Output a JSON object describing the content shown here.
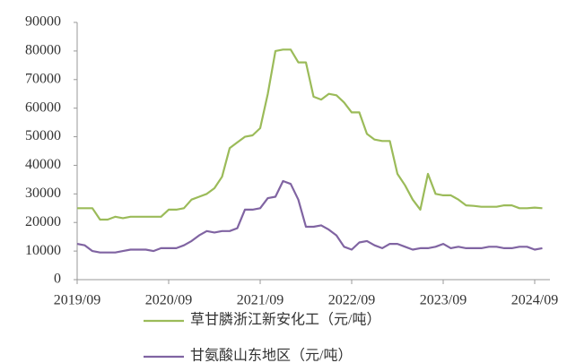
{
  "chart_data": {
    "type": "line",
    "x": [
      "2019/09",
      "2019/10",
      "2019/11",
      "2019/12",
      "2020/01",
      "2020/02",
      "2020/03",
      "2020/04",
      "2020/05",
      "2020/06",
      "2020/07",
      "2020/08",
      "2020/09",
      "2020/10",
      "2020/11",
      "2020/12",
      "2021/01",
      "2021/02",
      "2021/03",
      "2021/04",
      "2021/05",
      "2021/06",
      "2021/07",
      "2021/08",
      "2021/09",
      "2021/10",
      "2021/11",
      "2021/12",
      "2022/01",
      "2022/02",
      "2022/03",
      "2022/04",
      "2022/05",
      "2022/06",
      "2022/07",
      "2022/08",
      "2022/09",
      "2022/10",
      "2022/11",
      "2022/12",
      "2023/01",
      "2023/02",
      "2023/03",
      "2023/04",
      "2023/05",
      "2023/06",
      "2023/07",
      "2023/08",
      "2023/09",
      "2023/10",
      "2023/11",
      "2023/12",
      "2024/01",
      "2024/02",
      "2024/03",
      "2024/04",
      "2024/05",
      "2024/06",
      "2024/07",
      "2024/08",
      "2024/09",
      "2024/10"
    ],
    "series": [
      {
        "name": "草甘膦浙江新安化工（元/吨）",
        "color": "#9bbb59",
        "values": [
          25000,
          25000,
          25000,
          21000,
          21000,
          22000,
          21500,
          22000,
          22000,
          22000,
          22000,
          22000,
          24500,
          24500,
          25000,
          28000,
          29000,
          30000,
          32000,
          36000,
          46000,
          48000,
          50000,
          50500,
          53000,
          65000,
          80000,
          80500,
          80500,
          76000,
          76000,
          64000,
          63000,
          65000,
          64500,
          62000,
          58500,
          58500,
          51000,
          49000,
          48500,
          48500,
          37000,
          33000,
          28000,
          24500,
          37000,
          30000,
          29500,
          29500,
          28000,
          26000,
          25800,
          25500,
          25500,
          25500,
          26000,
          26000,
          25000,
          25000,
          25200,
          25000
        ]
      },
      {
        "name": "甘氨酸山东地区（元/吨）",
        "color": "#8064a2",
        "values": [
          12500,
          12000,
          10000,
          9500,
          9500,
          9500,
          10000,
          10500,
          10500,
          10500,
          10000,
          11000,
          11000,
          11000,
          12000,
          13500,
          15500,
          17000,
          16500,
          17000,
          17000,
          18000,
          24500,
          24500,
          25000,
          28500,
          29000,
          34500,
          33500,
          28000,
          18500,
          18500,
          19000,
          17500,
          15500,
          11500,
          10500,
          13000,
          13500,
          12000,
          11000,
          12500,
          12500,
          11500,
          10500,
          11000,
          11000,
          11500,
          12500,
          11000,
          11500,
          11000,
          11000,
          11000,
          11500,
          11500,
          11000,
          11000,
          11500,
          11500,
          10500,
          11000
        ]
      }
    ],
    "xlim": [
      "2019/09",
      "2024/11"
    ],
    "xticks": [
      "2019/09",
      "2020/09",
      "2021/09",
      "2022/09",
      "2023/09",
      "2024/09"
    ],
    "ylim": [
      0,
      90000
    ],
    "yticks": [
      0,
      10000,
      20000,
      30000,
      40000,
      50000,
      60000,
      70000,
      80000,
      90000
    ],
    "grid": false,
    "legend": "bottom"
  }
}
